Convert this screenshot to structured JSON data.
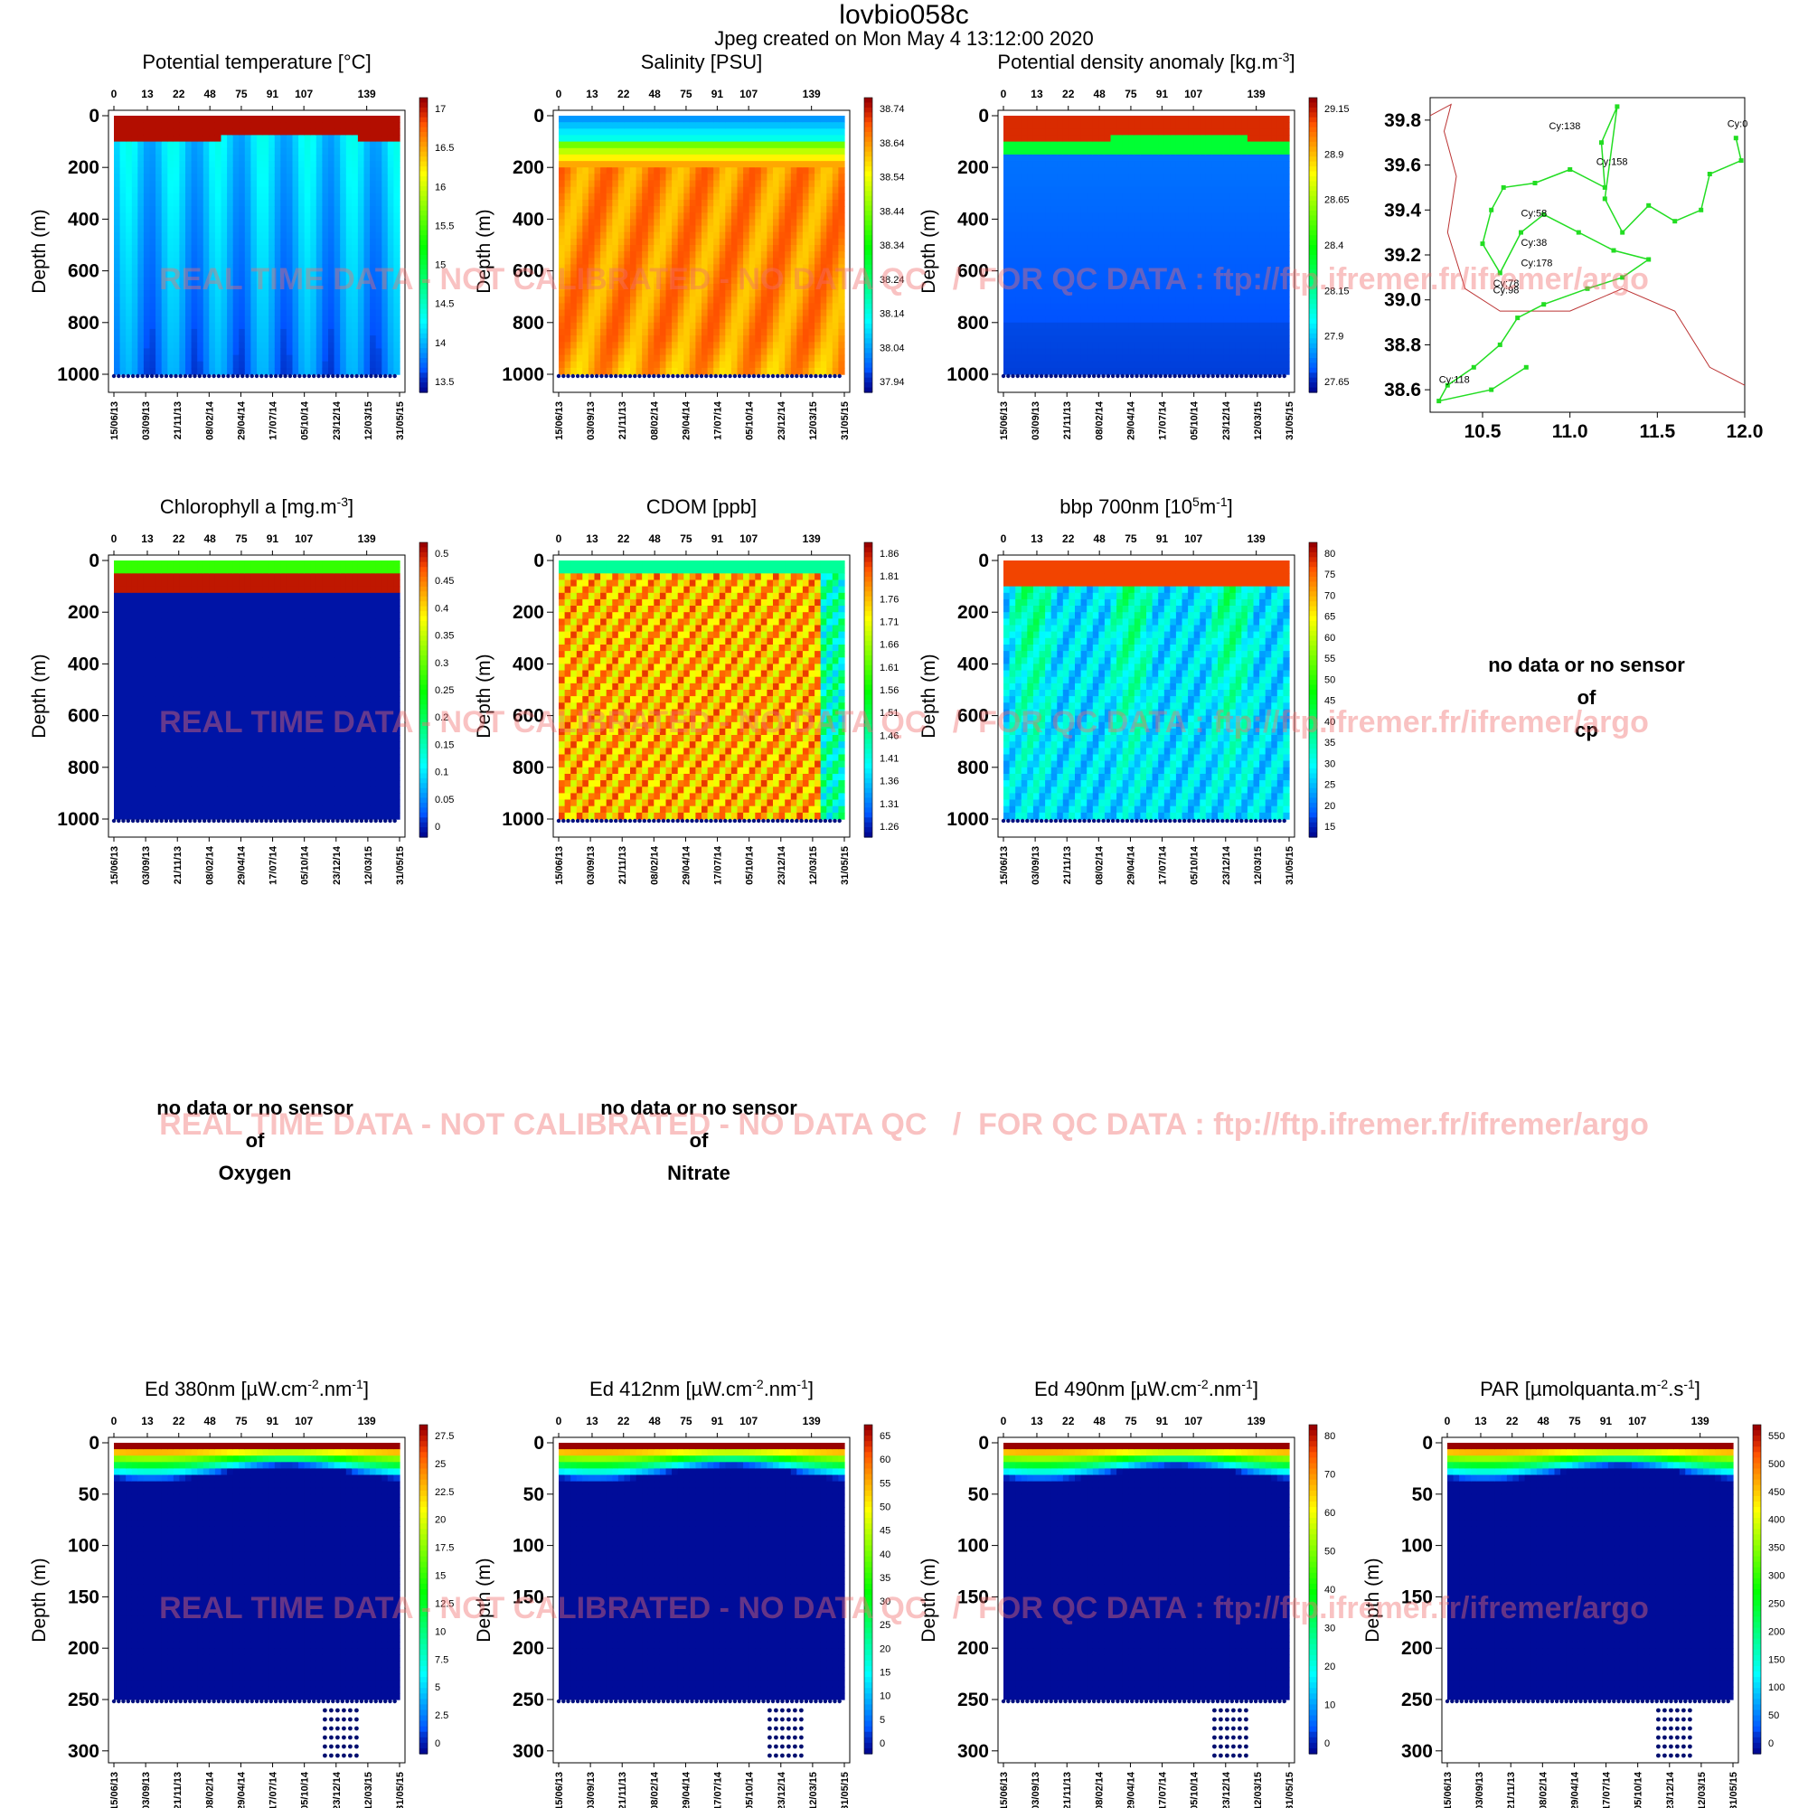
{
  "header": {
    "title": "lovbio058c",
    "subtitle": "Jpeg created on  Mon May  4 13:12:00 2020"
  },
  "watermark": "REAL TIME DATA - NOT CALIBRATED - NO DATA QC   /  FOR QC DATA : ftp://ftp.ifremer.fr/ifremer/argo",
  "axes_common": {
    "top_cycles": [
      "0",
      "13",
      "22",
      "48",
      "75",
      "91",
      "107",
      "139"
    ],
    "dates": [
      "15/06/13",
      "03/09/13",
      "21/11/13",
      "08/02/14",
      "29/04/14",
      "17/07/14",
      "05/10/14",
      "23/12/14",
      "12/03/15",
      "31/05/15"
    ],
    "ylabel": "Depth (m)",
    "depth_ticks_deep": [
      "0",
      "200",
      "400",
      "600",
      "800",
      "1000"
    ],
    "depth_ticks_shallow": [
      "0",
      "50",
      "100",
      "150",
      "200",
      "250",
      "300"
    ]
  },
  "chart_data": [
    {
      "type": "heatmap",
      "title": "Potential temperature [°C]",
      "ylabel": "Depth (m)",
      "ylim": [
        0,
        1000
      ],
      "colorbar": [
        "17",
        "16.5",
        "16",
        "15.5",
        "15",
        "14.5",
        "14",
        "13.5"
      ],
      "colormap": "jet-reversed-top-red"
    },
    {
      "type": "heatmap",
      "title": "Salinity [PSU]",
      "ylabel": "Depth (m)",
      "ylim": [
        0,
        1000
      ],
      "colorbar": [
        "38.74",
        "38.64",
        "38.54",
        "38.44",
        "38.34",
        "38.24",
        "38.14",
        "38.04",
        "37.94"
      ],
      "colormap": "jet"
    },
    {
      "type": "heatmap",
      "title": "Potential density anomaly [kg.m",
      "title_sup": "-3",
      "title_tail": "]",
      "ylabel": "Depth (m)",
      "ylim": [
        0,
        1000
      ],
      "colorbar": [
        "29.15",
        "28.9",
        "28.65",
        "28.4",
        "28.15",
        "27.9",
        "27.65"
      ],
      "colormap": "jet-inverted"
    },
    {
      "type": "scatter",
      "title": "",
      "xlim": [
        10.2,
        12.0
      ],
      "ylim": [
        38.5,
        39.9
      ],
      "xticks": [
        "10.5",
        "11.0",
        "11.5",
        "12.0"
      ],
      "yticks": [
        "39.8",
        "39.6",
        "39.4",
        "39.2",
        "39.0",
        "38.8",
        "38.6"
      ],
      "labels": [
        "Cy:138",
        "Cy:0",
        "Cy:158",
        "Cy:58",
        "Cy:38",
        "Cy:178",
        "Cy:78",
        "Cy:98",
        "Cy:118"
      ],
      "series_color": "#22dd22"
    },
    {
      "type": "heatmap",
      "title": "Chlorophyll a [mg.m",
      "title_sup": "-3",
      "title_tail": "]",
      "ylabel": "Depth (m)",
      "ylim": [
        0,
        1000
      ],
      "colorbar": [
        "0.5",
        "0.45",
        "0.4",
        "0.35",
        "0.3",
        "0.25",
        "0.2",
        "0.15",
        "0.1",
        "0.05",
        "0"
      ],
      "colormap": "jet"
    },
    {
      "type": "heatmap",
      "title": "CDOM  [ppb]",
      "ylabel": "Depth (m)",
      "ylim": [
        0,
        1000
      ],
      "colorbar": [
        "1.86",
        "1.81",
        "1.76",
        "1.71",
        "1.66",
        "1.61",
        "1.56",
        "1.51",
        "1.46",
        "1.41",
        "1.36",
        "1.31",
        "1.26"
      ],
      "colormap": "jet"
    },
    {
      "type": "heatmap",
      "title": "bbp 700nm [10",
      "title_sup": "5",
      "title_mid": "m",
      "title_sup2": "-1",
      "title_tail": "]",
      "ylabel": "Depth (m)",
      "ylim": [
        0,
        1000
      ],
      "colorbar": [
        "80",
        "75",
        "70",
        "65",
        "60",
        "55",
        "50",
        "45",
        "40",
        "35",
        "30",
        "25",
        "20",
        "15"
      ],
      "colormap": "jet"
    },
    {
      "type": "heatmap",
      "title": "Ed 380nm [µW.cm",
      "title_sup": "-2",
      "title_mid": ".nm",
      "title_sup2": "-1",
      "title_tail": "]",
      "ylabel": "Depth (m)",
      "ylim": [
        0,
        300
      ],
      "colorbar": [
        "27.5",
        "25",
        "22.5",
        "20",
        "17.5",
        "15",
        "12.5",
        "10",
        "7.5",
        "5",
        "2.5",
        "0"
      ],
      "colormap": "jet"
    },
    {
      "type": "heatmap",
      "title": "Ed 412nm [µW.cm",
      "title_sup": "-2",
      "title_mid": ".nm",
      "title_sup2": "-1",
      "title_tail": "]",
      "ylabel": "Depth (m)",
      "ylim": [
        0,
        300
      ],
      "colorbar": [
        "65",
        "60",
        "55",
        "50",
        "45",
        "40",
        "35",
        "30",
        "25",
        "20",
        "15",
        "10",
        "5",
        "0"
      ],
      "colormap": "jet"
    },
    {
      "type": "heatmap",
      "title": "Ed 490nm [µW.cm",
      "title_sup": "-2",
      "title_mid": ".nm",
      "title_sup2": "-1",
      "title_tail": "]",
      "ylabel": "Depth (m)",
      "ylim": [
        0,
        300
      ],
      "colorbar": [
        "80",
        "70",
        "60",
        "50",
        "40",
        "30",
        "20",
        "10",
        "0"
      ],
      "colormap": "jet"
    },
    {
      "type": "heatmap",
      "title": "PAR [µmolquanta.m",
      "title_sup": "-2",
      "title_mid": ".s",
      "title_sup2": "-1",
      "title_tail": "]",
      "ylabel": "Depth (m)",
      "ylim": [
        0,
        300
      ],
      "colorbar": [
        "550",
        "500",
        "450",
        "400",
        "350",
        "300",
        "250",
        "200",
        "150",
        "100",
        "50",
        "0"
      ],
      "colormap": "jet"
    }
  ],
  "no_data": [
    {
      "line1": "no data or no sensor",
      "line2": "of",
      "line3": "cp"
    },
    {
      "line1": "no data or no sensor",
      "line2": "of",
      "line3": "Oxygen"
    },
    {
      "line1": "no data or no sensor",
      "line2": "of",
      "line3": "Nitrate"
    }
  ]
}
